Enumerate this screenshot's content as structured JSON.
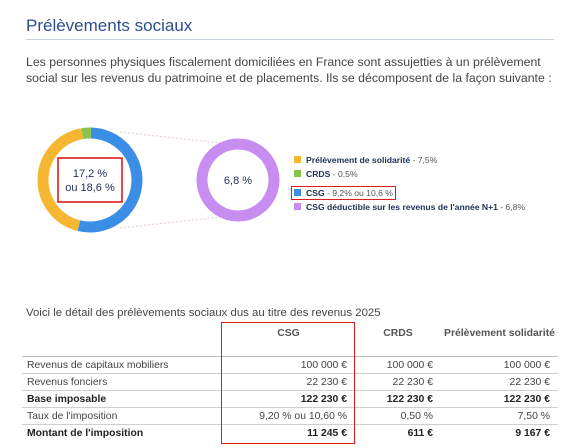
{
  "page": {
    "title": "Prélèvements sociaux",
    "intro": "Les personnes physiques fiscalement domiciliées en France sont assujetties à un prélèvement social sur les revenus du patrimoine et de placements. Ils se décomposent de la façon suivante :"
  },
  "chart_data": [
    {
      "type": "pie",
      "subtype": "donut",
      "center_label_line1": "17,2 %",
      "center_label_line2": "ou 18,6 %",
      "slices": [
        {
          "label": "Prélèvement de solidarité",
          "value": 7.5,
          "color": "#f5b731"
        },
        {
          "label": "CRDS",
          "value": 0.5,
          "color": "#8bc34a"
        },
        {
          "label": "CSG",
          "value": 9.2,
          "color": "#3b8ee6"
        }
      ]
    },
    {
      "type": "pie",
      "subtype": "donut",
      "center_label": "6,8 %",
      "slices": [
        {
          "label": "CSG déductible sur les revenus de l'année N+1",
          "value": 6.8,
          "color": "#c78df0"
        }
      ]
    }
  ],
  "legend": [
    {
      "label": "Prélèvement de solidarité",
      "value": " - 7,5%",
      "color": "#f5b731"
    },
    {
      "label": "CRDS",
      "value": " - 0,5%",
      "color": "#8bc34a"
    },
    {
      "label": "CSG",
      "value": " - 9,2% ou 10,6 %",
      "color": "#3b8ee6"
    },
    {
      "label": "CSG déductible sur les revenus de l'année N+1",
      "value": " - 6,8%",
      "color": "#c78df0"
    }
  ],
  "table": {
    "intro": "Voici le détail des prélèvements sociaux dus au titre des revenus 2025",
    "headers": [
      "",
      "CSG",
      "CRDS",
      "Prélèvement solidarité"
    ],
    "rows": [
      {
        "label": "Revenus de capitaux mobiliers",
        "csg": "100 000 €",
        "crds": "100 000 €",
        "prelevement": "100 000 €"
      },
      {
        "label": "Revenus fonciers",
        "csg": "22 230 €",
        "crds": "22 230 €",
        "prelevement": "22 230 €"
      },
      {
        "label": "Base imposable",
        "csg": "122 230 €",
        "crds": "122 230 €",
        "prelevement": "122 230 €"
      },
      {
        "label": "Taux de l'imposition",
        "csg": "9,20 % ou 10,60 %",
        "crds": "0,50 %",
        "prelevement": "7,50 %"
      },
      {
        "label": "Montant de l'imposition",
        "csg": "11 245 €",
        "crds": "611 €",
        "prelevement": "9 167 €"
      }
    ]
  }
}
